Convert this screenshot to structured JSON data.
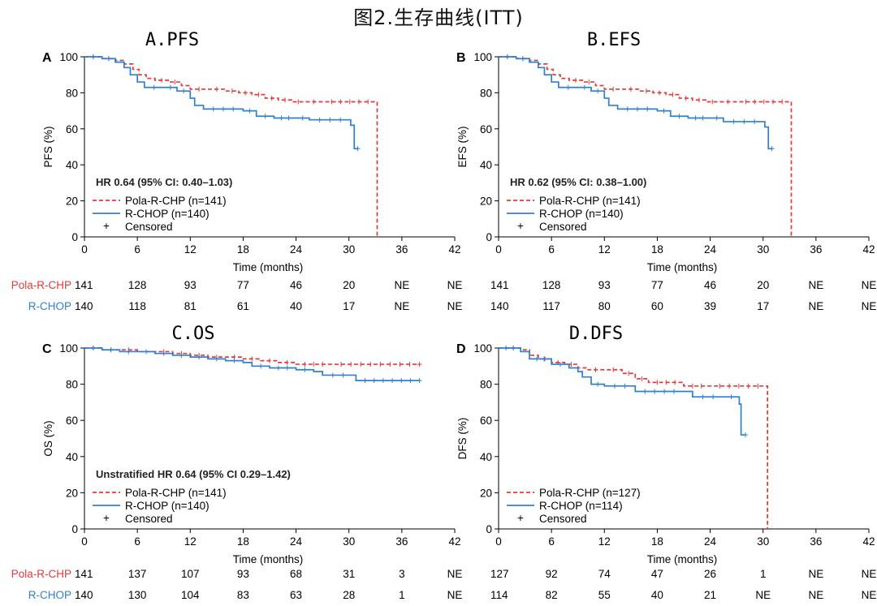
{
  "title": "图2.生存曲线(ITT)",
  "colors": {
    "pola": "#e23b3b",
    "rchop": "#2f80d1",
    "axis": "#000000"
  },
  "chart_data": [
    {
      "type": "line",
      "id": "pfs",
      "letter": "A",
      "title": "A.PFS",
      "ylabel": "PFS (%)",
      "xlabel": "Time (months)",
      "xlim": [
        0,
        42
      ],
      "ylim": [
        0,
        100
      ],
      "xticks": [
        0,
        6,
        12,
        18,
        24,
        30,
        36,
        42
      ],
      "yticks": [
        0,
        20,
        40,
        60,
        80,
        100
      ],
      "hr_text": "HR 0.64 (95% CI: 0.40–1.03)",
      "legend": [
        {
          "label": "Pola-R-CHP (n=141)",
          "style": "dashed",
          "color": "#e23b3b"
        },
        {
          "label": "R-CHOP (n=140)",
          "style": "solid",
          "color": "#2f80d1"
        },
        {
          "label": "Censored",
          "style": "marker",
          "color": "#000000"
        }
      ],
      "series": [
        {
          "name": "Pola-R-CHP",
          "color": "#e23b3b",
          "dash": true,
          "x": [
            0,
            2,
            3.5,
            4.5,
            5.5,
            6.2,
            7,
            8,
            9.5,
            11,
            12,
            14,
            16,
            17.5,
            19,
            20.5,
            22,
            23.5,
            25,
            27,
            33.2,
            33.2
          ],
          "y": [
            100,
            99,
            98,
            96,
            93,
            90,
            88,
            87,
            86,
            84,
            82,
            82,
            81,
            80,
            79,
            77,
            76,
            75,
            75,
            75,
            75,
            0
          ]
        },
        {
          "name": "R-CHOP",
          "color": "#2f80d1",
          "dash": false,
          "x": [
            0,
            2,
            3.5,
            4.5,
            5.2,
            6,
            6.8,
            9,
            10.5,
            12,
            12.5,
            13.5,
            18,
            19.5,
            21.5,
            24,
            25.5,
            30.2,
            30.4,
            30.6,
            31
          ],
          "y": [
            100,
            99,
            97,
            94,
            90,
            86,
            83,
            83,
            81,
            77,
            73,
            71,
            70,
            67,
            66,
            66,
            65,
            62,
            62,
            49,
            49
          ]
        }
      ],
      "risk": {
        "columns": [
          0,
          6,
          12,
          18,
          24,
          30,
          36,
          42
        ],
        "rows": [
          {
            "label": "Pola-R-CHP",
            "values": [
              "141",
              "128",
              "93",
              "77",
              "46",
              "20",
              "NE",
              "NE"
            ]
          },
          {
            "label": "R-CHOP",
            "values": [
              "140",
              "118",
              "81",
              "61",
              "40",
              "17",
              "NE",
              "NE"
            ]
          }
        ]
      }
    },
    {
      "type": "line",
      "id": "efs",
      "letter": "B",
      "title": "B.EFS",
      "ylabel": "EFS (%)",
      "xlabel": "Time (months)",
      "xlim": [
        0,
        42
      ],
      "ylim": [
        0,
        100
      ],
      "xticks": [
        0,
        6,
        12,
        18,
        24,
        30,
        36,
        42
      ],
      "yticks": [
        0,
        20,
        40,
        60,
        80,
        100
      ],
      "hr_text": "HR 0.62 (95% CI: 0.38–1.00)",
      "legend": [
        {
          "label": "Pola-R-CHP (n=141)",
          "style": "dashed",
          "color": "#e23b3b"
        },
        {
          "label": "R-CHOP (n=140)",
          "style": "solid",
          "color": "#2f80d1"
        },
        {
          "label": "Censored",
          "style": "marker",
          "color": "#000000"
        }
      ],
      "series": [
        {
          "name": "Pola-R-CHP",
          "color": "#e23b3b",
          "dash": true,
          "x": [
            0,
            2,
            3.5,
            4.5,
            5.5,
            6.2,
            7,
            8,
            9.5,
            11,
            12,
            14,
            16,
            17.5,
            19,
            20.5,
            22,
            23.5,
            25,
            27,
            33.2,
            33.2
          ],
          "y": [
            100,
            99,
            98,
            96,
            93,
            90,
            88,
            87,
            86,
            84,
            82,
            82,
            81,
            80,
            79,
            77,
            76,
            75,
            75,
            75,
            75,
            0
          ]
        },
        {
          "name": "R-CHOP",
          "color": "#2f80d1",
          "dash": false,
          "x": [
            0,
            2,
            3.5,
            4.5,
            5.2,
            6,
            6.8,
            9,
            10.5,
            12,
            12.5,
            13.5,
            18,
            19.5,
            21.5,
            24,
            25.5,
            30.2,
            30.4,
            30.6,
            31
          ],
          "y": [
            100,
            99,
            97,
            94,
            90,
            86,
            83,
            83,
            81,
            77,
            73,
            71,
            70,
            67,
            66,
            66,
            64,
            61,
            61,
            49,
            49
          ]
        }
      ],
      "risk": {
        "columns": [
          0,
          6,
          12,
          18,
          24,
          30,
          36,
          42
        ],
        "rows": [
          {
            "label": "Pola-R-CHP",
            "values": [
              "141",
              "128",
              "93",
              "77",
              "46",
              "20",
              "NE",
              "NE"
            ]
          },
          {
            "label": "R-CHOP",
            "values": [
              "140",
              "117",
              "80",
              "60",
              "39",
              "17",
              "NE",
              "NE"
            ]
          }
        ]
      }
    },
    {
      "type": "line",
      "id": "os",
      "letter": "C",
      "title": "C.OS",
      "ylabel": "OS (%)",
      "xlabel": "Time (months)",
      "xlim": [
        0,
        42
      ],
      "ylim": [
        0,
        100
      ],
      "xticks": [
        0,
        6,
        12,
        18,
        24,
        30,
        36,
        42
      ],
      "yticks": [
        0,
        20,
        40,
        60,
        80,
        100
      ],
      "hr_text": "Unstratified HR 0.64 (95% CI 0.29–1.42)",
      "legend": [
        {
          "label": "Pola-R-CHP (n=141)",
          "style": "dashed",
          "color": "#e23b3b"
        },
        {
          "label": "R-CHOP (n=140)",
          "style": "solid",
          "color": "#2f80d1"
        },
        {
          "label": "Censored",
          "style": "marker",
          "color": "#000000"
        }
      ],
      "series": [
        {
          "name": "Pola-R-CHP",
          "color": "#e23b3b",
          "dash": true,
          "x": [
            0,
            2,
            4,
            6,
            8,
            10,
            12,
            14,
            16,
            18,
            20,
            22,
            24,
            28,
            38
          ],
          "y": [
            100,
            99,
            99,
            98,
            98,
            97,
            96,
            95,
            95,
            94,
            93,
            92,
            91,
            91,
            91
          ]
        },
        {
          "name": "R-CHOP",
          "color": "#2f80d1",
          "dash": false,
          "x": [
            0,
            2,
            4,
            6,
            8,
            10,
            12,
            14,
            16,
            18,
            19,
            21,
            24,
            26,
            27,
            30.5,
            30.8,
            38
          ],
          "y": [
            100,
            99,
            98,
            98,
            97,
            96,
            95,
            94,
            93,
            92,
            90,
            89,
            88,
            87,
            85,
            85,
            82,
            82
          ]
        }
      ],
      "risk": {
        "columns": [
          0,
          6,
          12,
          18,
          24,
          30,
          36,
          42
        ],
        "rows": [
          {
            "label": "Pola-R-CHP",
            "values": [
              "141",
              "137",
              "107",
              "93",
              "68",
              "31",
              "3",
              "NE"
            ]
          },
          {
            "label": "R-CHOP",
            "values": [
              "140",
              "130",
              "104",
              "83",
              "63",
              "28",
              "1",
              "NE"
            ]
          }
        ]
      }
    },
    {
      "type": "line",
      "id": "dfs",
      "letter": "D",
      "title": "D.DFS",
      "ylabel": "DFS (%)",
      "xlabel": "Time (months)",
      "xlim": [
        0,
        42
      ],
      "ylim": [
        0,
        100
      ],
      "xticks": [
        0,
        6,
        12,
        18,
        24,
        30,
        36,
        42
      ],
      "yticks": [
        0,
        20,
        40,
        60,
        80,
        100
      ],
      "hr_text": "",
      "legend": [
        {
          "label": "Pola-R-CHP (n=127)",
          "style": "dashed",
          "color": "#e23b3b"
        },
        {
          "label": "R-CHOP (n=114)",
          "style": "solid",
          "color": "#2f80d1"
        },
        {
          "label": "Censored",
          "style": "marker",
          "color": "#000000"
        }
      ],
      "series": [
        {
          "name": "Pola-R-CHP",
          "color": "#e23b3b",
          "dash": true,
          "x": [
            0,
            2.5,
            3.5,
            4.5,
            6,
            7.5,
            9,
            10,
            12,
            14,
            15.5,
            17,
            21,
            24,
            30.5,
            30.5
          ],
          "y": [
            100,
            99,
            96,
            94,
            92,
            91,
            89,
            88,
            88,
            86,
            83,
            81,
            79,
            79,
            79,
            0
          ]
        },
        {
          "name": "R-CHOP",
          "color": "#2f80d1",
          "dash": false,
          "x": [
            0,
            2.5,
            3.5,
            6,
            8,
            9,
            9.5,
            10.5,
            12,
            15.5,
            21,
            22,
            25.5,
            27.3,
            27.5,
            28
          ],
          "y": [
            100,
            98,
            94,
            91,
            89,
            87,
            84,
            80,
            79,
            76,
            76,
            73,
            73,
            69,
            52,
            52
          ]
        }
      ],
      "risk": {
        "columns": [
          0,
          6,
          12,
          18,
          24,
          30,
          36,
          42
        ],
        "rows": [
          {
            "label": "Pola-R-CHP",
            "values": [
              "127",
              "92",
              "74",
              "47",
              "26",
              "1",
              "NE",
              "NE"
            ]
          },
          {
            "label": "R-CHOP",
            "values": [
              "114",
              "82",
              "55",
              "40",
              "21",
              "NE",
              "NE",
              "NE"
            ]
          }
        ]
      }
    }
  ]
}
